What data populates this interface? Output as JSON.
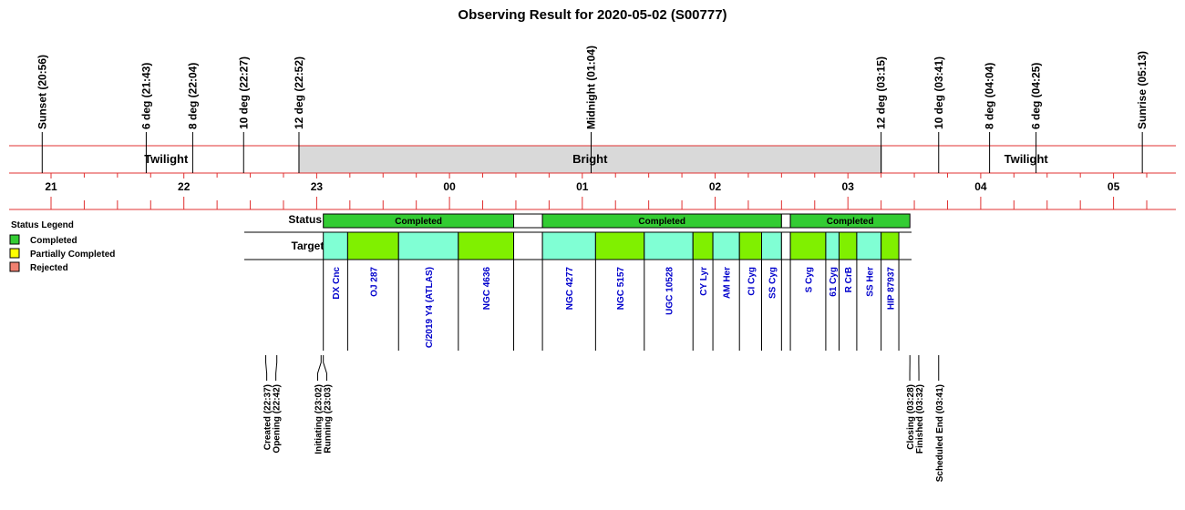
{
  "chart_data": {
    "type": "timeline",
    "title": "Observing Result for 2020-05-02 (S00777)",
    "time_range": [
      "20:52",
      "05:26"
    ],
    "sky_events": [
      {
        "label": "Sunset (20:56)",
        "time": "20:56"
      },
      {
        "label": "6 deg (21:43)",
        "time": "21:43"
      },
      {
        "label": "8 deg (22:04)",
        "time": "22:04"
      },
      {
        "label": "10 deg (22:27)",
        "time": "22:27"
      },
      {
        "label": "12 deg (22:52)",
        "time": "22:52"
      },
      {
        "label": "Midnight (01:04)",
        "time": "01:04"
      },
      {
        "label": "12 deg (03:15)",
        "time": "03:15"
      },
      {
        "label": "10 deg (03:41)",
        "time": "03:41"
      },
      {
        "label": "8 deg (04:04)",
        "time": "04:04"
      },
      {
        "label": "6 deg (04:25)",
        "time": "04:25"
      },
      {
        "label": "Sunrise (05:13)",
        "time": "05:13"
      }
    ],
    "periods": [
      {
        "label": "Twilight",
        "start": "20:52",
        "end": "22:52",
        "shaded": false
      },
      {
        "label": "Bright",
        "start": "22:52",
        "end": "03:15",
        "shaded": true
      },
      {
        "label": "Twilight",
        "start": "03:15",
        "end": "05:26",
        "shaded": false
      }
    ],
    "hours": [
      "21",
      "22",
      "23",
      "00",
      "01",
      "02",
      "03",
      "04",
      "05"
    ],
    "hour_times": [
      "21:00",
      "22:00",
      "23:00",
      "00:00",
      "01:00",
      "02:00",
      "03:00",
      "04:00",
      "05:00"
    ],
    "status_header": "Status",
    "targets_header": "Targets",
    "status_blocks": [
      {
        "label": "Completed",
        "start": "23:03",
        "end": "00:29",
        "status": "completed"
      },
      {
        "label": "",
        "start": "00:29",
        "end": "00:42",
        "status": "gap"
      },
      {
        "label": "Completed",
        "start": "00:42",
        "end": "02:30",
        "status": "completed"
      },
      {
        "label": "",
        "start": "02:30",
        "end": "02:34",
        "status": "gap"
      },
      {
        "label": "Completed",
        "start": "02:34",
        "end": "03:28",
        "status": "completed"
      }
    ],
    "targets": [
      {
        "name": "DX Cnc",
        "start": "23:03",
        "end": "23:14",
        "color": "#80ffd4"
      },
      {
        "name": "OJ 287",
        "start": "23:14",
        "end": "23:37",
        "color": "#80f000"
      },
      {
        "name": "C/2019 Y4 (ATLAS)",
        "start": "23:37",
        "end": "24:04",
        "color": "#80ffd4"
      },
      {
        "name": "NGC 4636",
        "start": "24:04",
        "end": "24:29",
        "color": "#80f000"
      },
      {
        "name": "",
        "start": "24:29",
        "end": "24:42",
        "color": "#ffffff"
      },
      {
        "name": "NGC 4277",
        "start": "24:42",
        "end": "25:06",
        "color": "#80ffd4"
      },
      {
        "name": "NGC 5157",
        "start": "25:06",
        "end": "25:28",
        "color": "#80f000"
      },
      {
        "name": "UGC 10528",
        "start": "25:28",
        "end": "25:50",
        "color": "#80ffd4"
      },
      {
        "name": "CY Lyr",
        "start": "25:50",
        "end": "25:59",
        "color": "#80f000"
      },
      {
        "name": "AM Her",
        "start": "25:59",
        "end": "26:11",
        "color": "#80ffd4"
      },
      {
        "name": "CI Cyg",
        "start": "26:11",
        "end": "26:21",
        "color": "#80f000"
      },
      {
        "name": "SS Cyg",
        "start": "26:21",
        "end": "26:30",
        "color": "#80ffd4"
      },
      {
        "name": "",
        "start": "26:30",
        "end": "26:34",
        "color": "#ffffff"
      },
      {
        "name": "S Cyg",
        "start": "26:34",
        "end": "26:50",
        "color": "#80f000"
      },
      {
        "name": "61 Cyg",
        "start": "26:50",
        "end": "26:56",
        "color": "#80ffd4"
      },
      {
        "name": "R CrB",
        "start": "26:56",
        "end": "27:04",
        "color": "#80f000"
      },
      {
        "name": "SS Her",
        "start": "27:04",
        "end": "27:15",
        "color": "#80ffd4"
      },
      {
        "name": "HIP 87937",
        "start": "27:15",
        "end": "27:23",
        "color": "#80f000"
      }
    ],
    "legend": {
      "title": "Status Legend",
      "items": [
        {
          "label": "Completed",
          "color": "#33cc33"
        },
        {
          "label": "Partially Completed",
          "color": "#ffff00"
        },
        {
          "label": "Rejected",
          "color": "#f08070"
        }
      ]
    },
    "state_changes": [
      {
        "label": "Created (22:37)",
        "time": "22:37"
      },
      {
        "label": "Opening (22:42)",
        "time": "22:42"
      },
      {
        "label": "Initiating (23:02)",
        "time": "23:02"
      },
      {
        "label": "Running (23:03)",
        "time": "23:03"
      },
      {
        "label": "Closing (03:28)",
        "time": "03:28"
      },
      {
        "label": "Finished (03:32)",
        "time": "03:32"
      },
      {
        "label": "Scheduled End (03:41)",
        "time": "03:41"
      }
    ],
    "colors": {
      "axis_line": "#e03030",
      "bright_fill": "#d9d9d9",
      "completed": "#33cc33",
      "target_text": "#0000cc"
    }
  }
}
